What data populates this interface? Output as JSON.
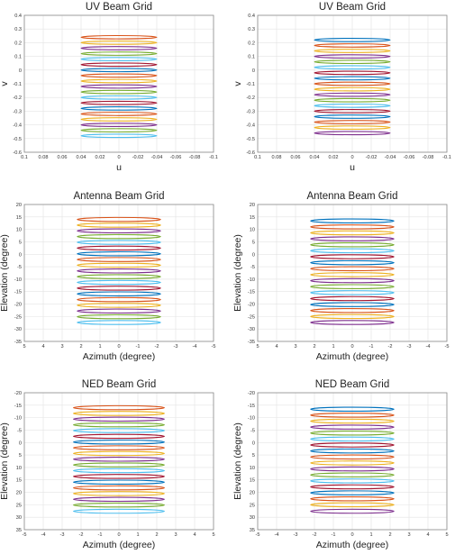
{
  "colors": [
    "#0072BD",
    "#D95319",
    "#EDB120",
    "#7E2F8E",
    "#77AC30",
    "#4DBEEE",
    "#A2142F"
  ],
  "chart_data": [
    {
      "type": "scatter",
      "title": "UV Beam Grid",
      "xlabel": "u",
      "ylabel": "v",
      "xlim": [
        0.1,
        -0.1
      ],
      "ylim": [
        -0.6,
        0.4
      ],
      "xticks": [
        0.1,
        0.08,
        0.06,
        0.04,
        0.02,
        0,
        -0.02,
        -0.04,
        -0.06,
        -0.08,
        -0.1
      ],
      "yticks": [
        0.4,
        0.3,
        0.2,
        0.1,
        0,
        -0.1,
        -0.2,
        -0.3,
        -0.4,
        -0.5,
        -0.6
      ],
      "xtick_labels": [
        "0.1",
        "0.08",
        "0.06",
        "0.04",
        "0.02",
        "0",
        "-0.02",
        "-0.04",
        "-0.06",
        "-0.08",
        "-0.1"
      ],
      "ytick_labels": [
        "0.4",
        "0.3",
        "0.2",
        "0.1",
        "0",
        "-0.1",
        "-0.2",
        "-0.3",
        "-0.4",
        "-0.5",
        "-0.6"
      ],
      "grid": true,
      "shape": "ellipse",
      "x_half_width": 0.04,
      "y_half_height": 0.012,
      "centers_y": [
        0.24,
        0.2,
        0.16,
        0.12,
        0.08,
        0.04,
        0.0,
        -0.04,
        -0.08,
        -0.12,
        -0.16,
        -0.2,
        -0.24,
        -0.28,
        -0.32,
        -0.36,
        -0.4,
        -0.44,
        -0.48
      ],
      "first_color": 1
    },
    {
      "type": "scatter",
      "title": "UV Beam Grid",
      "xlabel": "u",
      "ylabel": "v",
      "xlim": [
        0.1,
        -0.1
      ],
      "ylim": [
        -0.6,
        0.4
      ],
      "xticks": [
        0.1,
        0.08,
        0.06,
        0.04,
        0.02,
        0,
        -0.02,
        -0.04,
        -0.06,
        -0.08,
        -0.1
      ],
      "yticks": [
        0.4,
        0.3,
        0.2,
        0.1,
        0,
        -0.1,
        -0.2,
        -0.3,
        -0.4,
        -0.5,
        -0.6
      ],
      "xtick_labels": [
        "0.1",
        "0.08",
        "0.06",
        "0.04",
        "0.02",
        "0",
        "-0.02",
        "-0.04",
        "-0.06",
        "-0.08",
        "-0.1"
      ],
      "ytick_labels": [
        "0.4",
        "0.3",
        "0.2",
        "0.1",
        "0",
        "-0.1",
        "-0.2",
        "-0.3",
        "-0.4",
        "-0.5",
        "-0.6"
      ],
      "grid": true,
      "shape": "ellipse",
      "x_half_width": 0.04,
      "y_half_height": 0.012,
      "centers_y": [
        0.22,
        0.18,
        0.14,
        0.1,
        0.06,
        0.02,
        -0.02,
        -0.06,
        -0.1,
        -0.14,
        -0.18,
        -0.22,
        -0.26,
        -0.3,
        -0.34,
        -0.38,
        -0.42,
        -0.46
      ],
      "first_color": 0
    },
    {
      "type": "scatter",
      "title": "Antenna Beam Grid",
      "xlabel": "Azimuth (degree)",
      "ylabel": "Elevation (degree)",
      "xlim": [
        5,
        -5
      ],
      "ylim": [
        -35,
        20
      ],
      "xticks": [
        5,
        4,
        3,
        2,
        1,
        0,
        -1,
        -2,
        -3,
        -4,
        -5
      ],
      "yticks": [
        20,
        15,
        10,
        5,
        0,
        -5,
        -10,
        -15,
        -20,
        -25,
        -30,
        -35
      ],
      "xtick_labels": [
        "5",
        "4",
        "3",
        "2",
        "1",
        "0",
        "-1",
        "-2",
        "-3",
        "-4",
        "-5"
      ],
      "ytick_labels": [
        "20",
        "15",
        "10",
        "5",
        "0",
        "-5",
        "-10",
        "-15",
        "-20",
        "-25",
        "-30",
        "-35"
      ],
      "grid": true,
      "shape": "ellipse",
      "x_half_width": 2.2,
      "y_half_height": 0.8,
      "centers_y": [
        14,
        11.7,
        9.4,
        7.1,
        4.8,
        2.5,
        0.2,
        -2.1,
        -4.4,
        -6.7,
        -9.0,
        -11.3,
        -13.6,
        -15.9,
        -18.2,
        -20.5,
        -22.8,
        -25.1,
        -27.4
      ],
      "first_color": 1
    },
    {
      "type": "scatter",
      "title": "Antenna Beam Grid",
      "xlabel": "Azimuth (degree)",
      "ylabel": "Elevation (degree)",
      "xlim": [
        5,
        -5
      ],
      "ylim": [
        -35,
        20
      ],
      "xticks": [
        5,
        4,
        3,
        2,
        1,
        0,
        -1,
        -2,
        -3,
        -4,
        -5
      ],
      "yticks": [
        20,
        15,
        10,
        5,
        0,
        -5,
        -10,
        -15,
        -20,
        -25,
        -30,
        -35
      ],
      "xtick_labels": [
        "5",
        "4",
        "3",
        "2",
        "1",
        "0",
        "-1",
        "-2",
        "-3",
        "-4",
        "-5"
      ],
      "ytick_labels": [
        "20",
        "15",
        "10",
        "5",
        "0",
        "-5",
        "-10",
        "-15",
        "-20",
        "-25",
        "-30",
        "-35"
      ],
      "grid": true,
      "shape": "ellipse",
      "x_half_width": 2.2,
      "y_half_height": 0.8,
      "centers_y": [
        13.4,
        11.0,
        8.6,
        6.2,
        3.8,
        1.4,
        -1.0,
        -3.4,
        -5.8,
        -8.2,
        -10.6,
        -13.0,
        -15.4,
        -17.8,
        -20.2,
        -22.6,
        -25.0,
        -27.4
      ],
      "first_color": 0
    },
    {
      "type": "scatter",
      "title": "NED Beam Grid",
      "xlabel": "Azimuth (degree)",
      "ylabel": "Elevation (degree)",
      "xlim": [
        -5,
        5
      ],
      "ylim": [
        35,
        -20
      ],
      "xticks": [
        -5,
        -4,
        -3,
        -2,
        -1,
        0,
        1,
        2,
        3,
        4,
        5
      ],
      "yticks": [
        -20,
        -15,
        -10,
        -5,
        0,
        5,
        10,
        15,
        20,
        25,
        30,
        35
      ],
      "xtick_labels": [
        "-5",
        "-4",
        "-3",
        "-2",
        "-1",
        "0",
        "1",
        "2",
        "3",
        "4",
        "5"
      ],
      "ytick_labels": [
        "-20",
        "-15",
        "-10",
        "-5",
        "0",
        "5",
        "10",
        "15",
        "20",
        "25",
        "30",
        "35"
      ],
      "grid": true,
      "shape": "ellipse",
      "x_half_width": 2.4,
      "y_half_height": 0.8,
      "centers_y": [
        -14,
        -11.7,
        -9.4,
        -7.1,
        -4.8,
        -2.5,
        -0.2,
        2.1,
        4.4,
        6.7,
        9.0,
        11.3,
        13.6,
        15.9,
        18.2,
        20.5,
        22.8,
        25.1,
        27.6
      ],
      "first_color": 1
    },
    {
      "type": "scatter",
      "title": "NED Beam Grid",
      "xlabel": "Azimuth (degree)",
      "ylabel": "Elevation (degree)",
      "xlim": [
        -5,
        5
      ],
      "ylim": [
        35,
        -20
      ],
      "xticks": [
        -5,
        -4,
        -3,
        -2,
        -1,
        0,
        1,
        2,
        3,
        4,
        5
      ],
      "yticks": [
        -20,
        -15,
        -10,
        -5,
        0,
        5,
        10,
        15,
        20,
        25,
        30,
        35
      ],
      "xtick_labels": [
        "-5",
        "-4",
        "-3",
        "-2",
        "-1",
        "0",
        "1",
        "2",
        "3",
        "4",
        "5"
      ],
      "ytick_labels": [
        "-20",
        "-15",
        "-10",
        "-5",
        "0",
        "5",
        "10",
        "15",
        "20",
        "25",
        "30",
        "35"
      ],
      "grid": true,
      "shape": "ellipse",
      "x_half_width": 2.2,
      "y_half_height": 0.8,
      "centers_y": [
        -13.4,
        -11.0,
        -8.6,
        -6.2,
        -3.8,
        -1.4,
        1.0,
        3.4,
        5.8,
        8.2,
        10.6,
        13.0,
        15.4,
        17.8,
        20.2,
        22.6,
        25.0,
        27.6
      ],
      "first_color": 0
    }
  ]
}
